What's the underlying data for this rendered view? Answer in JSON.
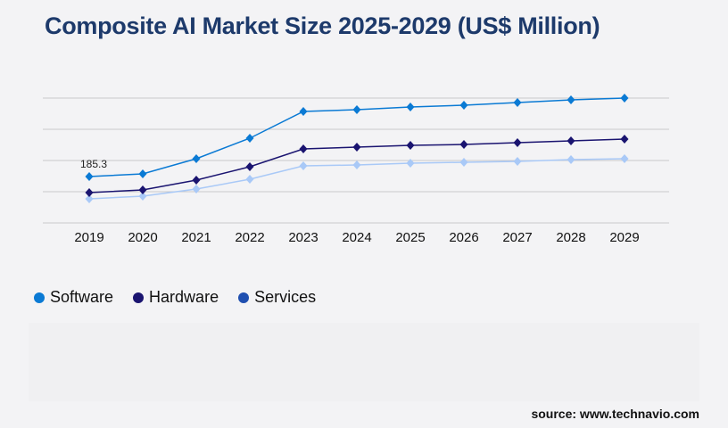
{
  "chart_data": {
    "type": "line",
    "title": "Composite AI Market Size 2025-2029 (US$ Million)",
    "categories": [
      "2019",
      "2020",
      "2021",
      "2022",
      "2023",
      "2024",
      "2025",
      "2026",
      "2027",
      "2028",
      "2029"
    ],
    "series": [
      {
        "name": "Software",
        "color": "#0a7ad4",
        "legend_color": "#0a7ad4",
        "values": [
          185.3,
          196,
          256.5,
          338.5,
          445.4,
          452.5,
          463.2,
          470.3,
          481,
          491.7,
          498.8
        ]
      },
      {
        "name": "Hardware",
        "color": "#1a1470",
        "legend_color": "#1a1470",
        "values": [
          121.1,
          131.8,
          171.0,
          224.5,
          295.7,
          302.9,
          310.0,
          313.5,
          320.7,
          327.8,
          334.9
        ]
      },
      {
        "name": "Services",
        "color": "#a9c9f7",
        "legend_color": "#1f4fb0",
        "values": [
          96.2,
          106.9,
          135.4,
          174.6,
          228.0,
          231.6,
          238.7,
          242.3,
          245.8,
          253.0,
          256.5
        ]
      }
    ],
    "data_labels": [
      {
        "series": "Software",
        "category": "2019",
        "text": "185.3"
      }
    ],
    "ylim": [
      0,
      498.8
    ],
    "grid": true,
    "legend": "bottom-left",
    "marker": "diamond"
  },
  "source": "source: www.technavio.com"
}
